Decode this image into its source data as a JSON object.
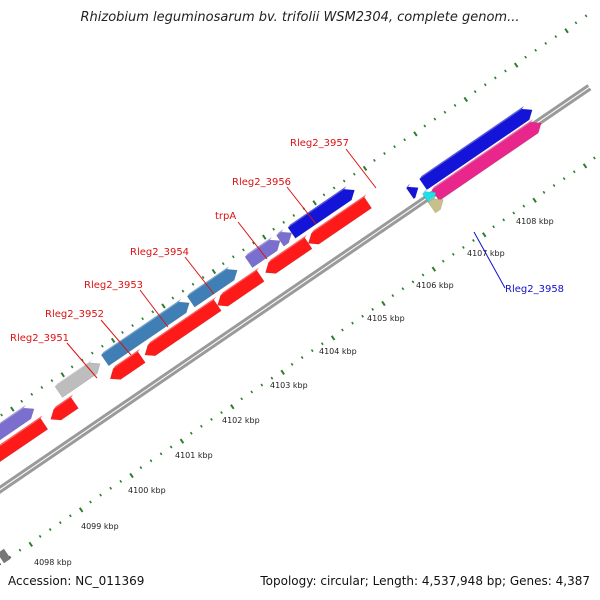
{
  "title": "Rhizobium leguminosarum bv. trifolii WSM2304, complete genom...",
  "footer": {
    "accession": "Accession: NC_011369",
    "summary": "Topology: circular; Length: 4,537,948 bp; Genes: 4,387"
  },
  "colors": {
    "forward_dark": "#1414d8",
    "reverse": "#ff1a1a",
    "purple": "#7a6fcf",
    "steelblue": "#3f7fb6",
    "navy": "#14146e",
    "gray": "#bdbdbd",
    "magenta": "#e8268c",
    "cyan": "#1fe0e8",
    "khaki": "#c8c08a",
    "backbone": "#9a9a9a",
    "tick": "#2e7d2e",
    "label_red": "#dd1111",
    "label_blue": "#1111cc"
  },
  "ticks": [
    {
      "label": "4098 kbp"
    },
    {
      "label": "4099 kbp"
    },
    {
      "label": "4100 kbp"
    },
    {
      "label": "4101 kbp"
    },
    {
      "label": "4102 kbp"
    },
    {
      "label": "4103 kbp"
    },
    {
      "label": "4104 kbp"
    },
    {
      "label": "4105 kbp"
    },
    {
      "label": "4106 kbp"
    },
    {
      "label": "4107 kbp"
    },
    {
      "label": "4108 kbp"
    }
  ],
  "gene_labels": [
    {
      "text": "Rleg2_3951",
      "color": "label_red"
    },
    {
      "text": "Rleg2_3952",
      "color": "label_red"
    },
    {
      "text": "Rleg2_3953",
      "color": "label_red"
    },
    {
      "text": "Rleg2_3954",
      "color": "label_red"
    },
    {
      "text": "trpA",
      "color": "label_red"
    },
    {
      "text": "Rleg2_3956",
      "color": "label_red"
    },
    {
      "text": "Rleg2_3957",
      "color": "label_red"
    },
    {
      "text": "Rleg2_3958",
      "color": "label_blue"
    }
  ]
}
